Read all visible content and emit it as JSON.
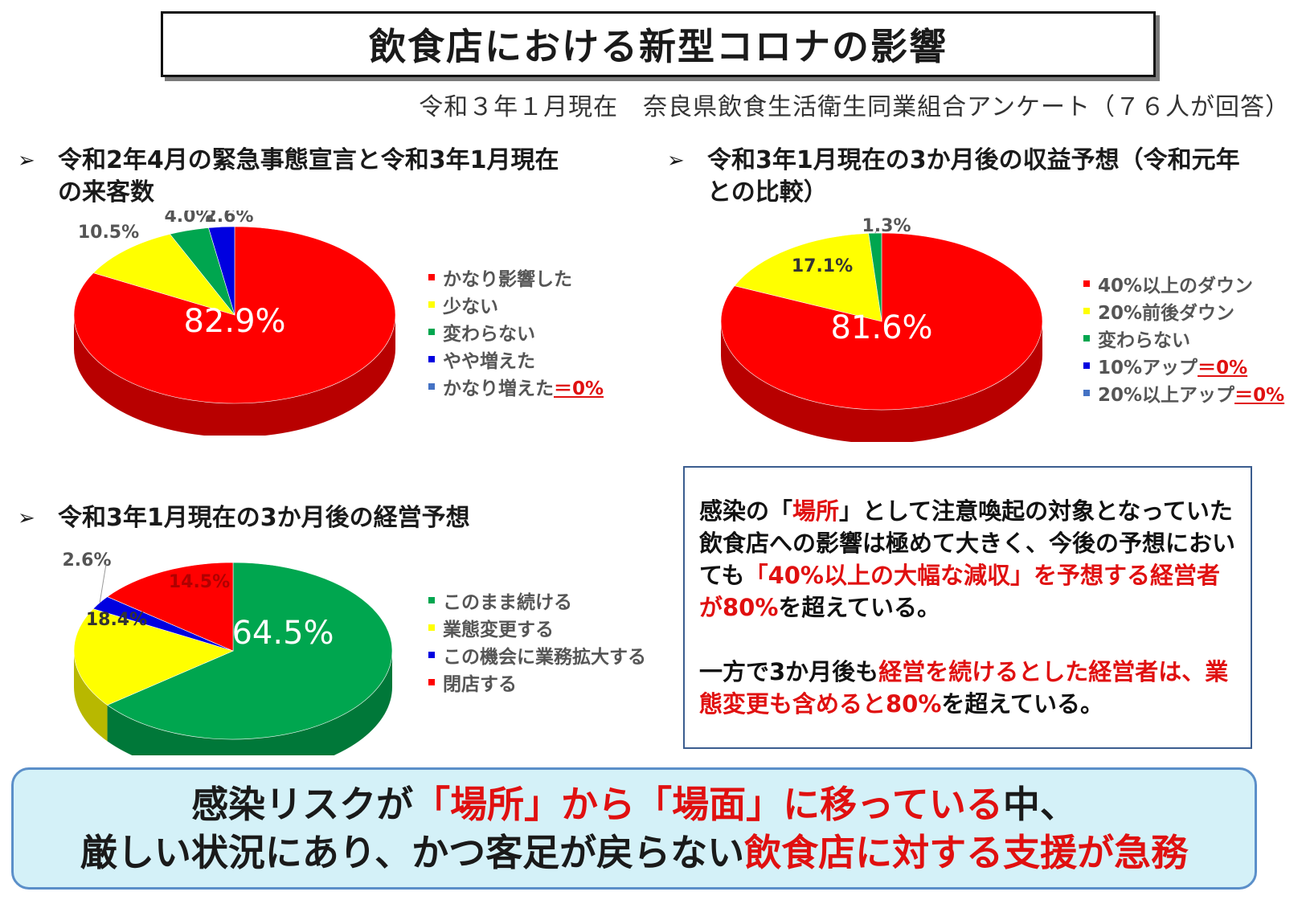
{
  "title": "飲食店における新型コロナの影響",
  "source": "令和３年１月現在　奈良県飲食生活衛生同業組合アンケート（７６人が回答）",
  "colors": {
    "red": "#ff0000",
    "yellow": "#ffff00",
    "green": "#00a64f",
    "blue": "#0000e0",
    "lightblue": "#4472c4",
    "accent_red": "#e01010",
    "frame": "#3b5d8f",
    "banner_bg": "#d4f1f8"
  },
  "charts": [
    {
      "heading_line1": "令和2年4月の緊急事態宣言と令和3年1月現在",
      "heading_line2": "の来客数",
      "legend": [
        {
          "label": "かなり影響した",
          "zero": ""
        },
        {
          "label": "少ない",
          "zero": ""
        },
        {
          "label": "変わらない",
          "zero": ""
        },
        {
          "label": "やや増えた",
          "zero": ""
        },
        {
          "label": "かなり増えた",
          "zero": "＝0%"
        }
      ]
    },
    {
      "heading_line1": "令和3年1月現在の3か月後の収益予想（令和元年",
      "heading_line2": "との比較）",
      "legend": [
        {
          "label": "40%以上のダウン",
          "zero": ""
        },
        {
          "label": "20%前後ダウン",
          "zero": ""
        },
        {
          "label": "変わらない",
          "zero": ""
        },
        {
          "label": "10%アップ",
          "zero": "＝0%"
        },
        {
          "label": "20%以上アップ",
          "zero": "＝0%"
        }
      ]
    },
    {
      "heading_line1": "令和3年1月現在の3か月後の経営予想",
      "heading_line2": "",
      "legend": [
        {
          "label": "このまま続ける",
          "zero": ""
        },
        {
          "label": "業態変更する",
          "zero": ""
        },
        {
          "label": "この機会に業務拡大する",
          "zero": ""
        },
        {
          "label": "閉店する",
          "zero": ""
        }
      ]
    }
  ],
  "chart_data": [
    {
      "type": "pie",
      "categories": [
        "かなり影響した",
        "少ない",
        "変わらない",
        "やや増えた",
        "かなり増えた"
      ],
      "values": [
        82.9,
        10.5,
        4.0,
        2.6,
        0
      ],
      "labels": [
        "82.9%",
        "10.5%",
        "4.0%",
        "2.6%",
        ""
      ],
      "colors": [
        "#ff0000",
        "#ffff00",
        "#00a64f",
        "#0000e0",
        "#4472c4"
      ]
    },
    {
      "type": "pie",
      "categories": [
        "40%以上のダウン",
        "20%前後ダウン",
        "変わらない",
        "10%アップ",
        "20%以上アップ"
      ],
      "values": [
        81.6,
        17.1,
        1.3,
        0,
        0
      ],
      "labels": [
        "81.6%",
        "17.1%",
        "1.3%",
        "",
        ""
      ],
      "colors": [
        "#ff0000",
        "#ffff00",
        "#00a64f",
        "#0000e0",
        "#4472c4"
      ]
    },
    {
      "type": "pie",
      "categories": [
        "このまま続ける",
        "業態変更する",
        "この機会に業務拡大する",
        "閉店する"
      ],
      "values": [
        64.5,
        18.4,
        2.6,
        14.5
      ],
      "labels": [
        "64.5%",
        "18.4%",
        "2.6%",
        "14.5%"
      ],
      "colors": [
        "#00a64f",
        "#ffff00",
        "#0000e0",
        "#ff0000"
      ]
    }
  ],
  "note": {
    "p1": [
      {
        "t": "感染の「",
        "red": false
      },
      {
        "t": "場所",
        "red": true
      },
      {
        "t": "」として注意喚起の対象となっていた飲食店への影響は極めて大きく、今後の予想においても",
        "red": false
      },
      {
        "t": "「40%以上の大幅な減収」を予想する経営者が80%",
        "red": true
      },
      {
        "t": "を超えている。",
        "red": false
      }
    ],
    "p2": [
      {
        "t": "一方で3か月後も",
        "red": false
      },
      {
        "t": "経営を続けるとした経営者は、業態変更も含めると80%",
        "red": true
      },
      {
        "t": "を超えている。",
        "red": false
      }
    ]
  },
  "banner": {
    "line1": [
      {
        "t": "感染リスクが",
        "red": false
      },
      {
        "t": "「場所」から「場面」に移っている",
        "red": true
      },
      {
        "t": "中、",
        "red": false
      }
    ],
    "line2": [
      {
        "t": "厳しい状況にあり、かつ客足が戻らない",
        "red": false
      },
      {
        "t": "飲食店に対する支援が急務",
        "red": true
      }
    ]
  }
}
